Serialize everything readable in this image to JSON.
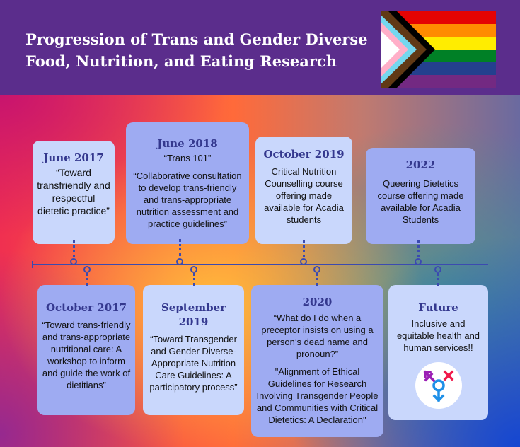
{
  "header": {
    "title": "Progression of Trans and Gender Diverse Food, Nutrition, and Eating Research",
    "flag_icon": "progress-pride-flag"
  },
  "colors": {
    "header": "#5b2d8c",
    "date": "#34388e",
    "light_box": "#c9d7fc",
    "dark_box": "#9eabf2",
    "line": "#3b4ab0"
  },
  "events_top": [
    {
      "date": "June 2017",
      "text": [
        "“Toward transfriendly and respectful dietetic practice”"
      ]
    },
    {
      "date": "June 2018",
      "text": [
        "“Trans 101”",
        "“Collaborative consultation to develop trans-friendly and trans-appropriate nutrition assessment and practice guidelines”"
      ]
    },
    {
      "date": "October 2019",
      "text": [
        "Critical Nutrition Counselling course offering made available for Acadia students"
      ]
    },
    {
      "date": "2022",
      "text": [
        "Queering Dietetics course offering made available for Acadia Students"
      ]
    }
  ],
  "events_bottom": [
    {
      "date": "October 2017",
      "text": [
        "“Toward trans-friendly and trans-appropriate nutritional care: A workshop to inform and guide the work of dietitians”"
      ]
    },
    {
      "date": "September 2019",
      "text": [
        "“Toward Transgender and Gender Diverse-Appropriate Nutrition Care Guidelines: A participatory process”"
      ]
    },
    {
      "date": "2020",
      "text": [
        "“What do I do when a preceptor insists on using a person’s dead name and pronoun?”",
        "\"Alignment of Ethical Guidelines for Research Involving Transgender People and Communities with Critical Dietetics: A Declaration\""
      ]
    },
    {
      "date": "Future",
      "text": [
        "Inclusive and equitable health and human services!!"
      ],
      "icon": "transgender-symbol-icon"
    }
  ]
}
